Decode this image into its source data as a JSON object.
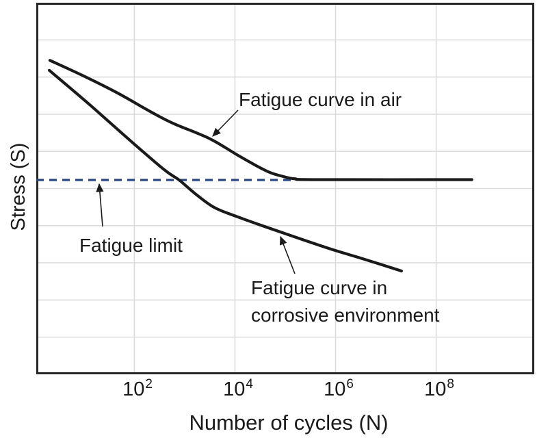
{
  "figure": {
    "y_axis_label": "Stress (S)",
    "x_axis_label": "Number of cycles (N)"
  },
  "annotations": {
    "air_curve_label": "Fatigue curve in air",
    "fatigue_limit_label": "Fatigue limit",
    "corrosive_curve_label_line1": "Fatigue curve in",
    "corrosive_curve_label_line2": "corrosive environment"
  },
  "ticks": [
    {
      "base": "10",
      "exp": "2"
    },
    {
      "base": "10",
      "exp": "4"
    },
    {
      "base": "10",
      "exp": "6"
    },
    {
      "base": "10",
      "exp": "8"
    }
  ],
  "colors": {
    "curve": "#1a1a1a",
    "grid": "#dcdcdc",
    "border": "#262626",
    "fatigue_limit_dash": "#2a4685",
    "text": "#1a1a1a",
    "background": "#ffffff"
  },
  "chart_data": {
    "type": "line",
    "title": "",
    "xlabel": "Number of cycles (N)",
    "ylabel": "Stress (S)",
    "x_scale": "log10",
    "x_ticks_cycles": [
      100,
      10000,
      1000000,
      100000000
    ],
    "x_tick_labels": [
      "10^2",
      "10^4",
      "10^6",
      "10^8"
    ],
    "x_log_range": [
      0.05,
      9.95
    ],
    "y_range": [
      0,
      100
    ],
    "y_units": "arbitrary stress units (axis unlabeled)",
    "grid": true,
    "y_gridlines": [
      10,
      20,
      30,
      40,
      50,
      60,
      70,
      80,
      90
    ],
    "legend_position": "none (labels drawn as arrows/annotations on plot)",
    "series": [
      {
        "name": "Fatigue curve in air",
        "behavior": "decreases then plateaus at the fatigue limit (endurance limit) near 10^5 cycles",
        "points_log10N_vs_stress": [
          [
            0.32,
            84.5
          ],
          [
            0.96,
            80.5
          ],
          [
            1.64,
            75.9
          ],
          [
            2.32,
            70.7
          ],
          [
            2.76,
            67.6
          ],
          [
            3.5,
            63.4
          ],
          [
            4.09,
            58.7
          ],
          [
            4.63,
            54.7
          ],
          [
            4.97,
            53.2
          ],
          [
            5.2,
            52.6
          ],
          [
            5.6,
            52.4
          ],
          [
            8.71,
            52.4
          ]
        ]
      },
      {
        "name": "Fatigue curve in corrosive environment",
        "behavior": "keeps decreasing with cycles; no fatigue limit plateau",
        "points_log10N_vs_stress": [
          [
            0.31,
            81.8
          ],
          [
            1.1,
            72.7
          ],
          [
            1.91,
            63.0
          ],
          [
            2.59,
            55.1
          ],
          [
            2.89,
            52.3
          ],
          [
            3.21,
            48.6
          ],
          [
            3.59,
            44.9
          ],
          [
            4.05,
            42.4
          ],
          [
            4.86,
            38.5
          ],
          [
            5.86,
            33.9
          ],
          [
            6.54,
            31.1
          ],
          [
            7.31,
            27.8
          ]
        ]
      }
    ],
    "fatigue_limit": {
      "label": "Fatigue limit",
      "stress": 52.3,
      "log10N_span": [
        0.05,
        5.14
      ],
      "style": "dashed horizontal line",
      "color": "#2a4685"
    }
  }
}
